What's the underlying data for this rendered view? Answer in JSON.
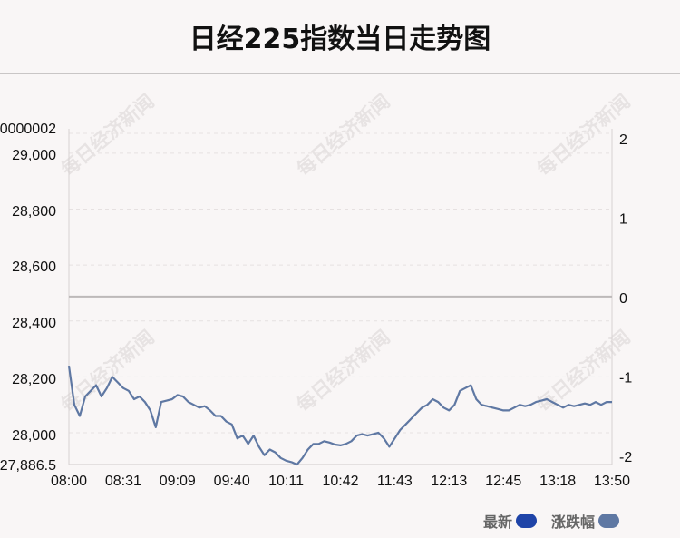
{
  "title": "日经225指数当日走势图",
  "watermark": "每日经济新闻",
  "legend": [
    {
      "label": "最新",
      "color": "#1f44a8"
    },
    {
      "label": "涨跌幅",
      "color": "#5f78a3"
    }
  ],
  "chart_data": {
    "type": "line",
    "title": "日经225指数当日走势图",
    "x_ticks": [
      "08:00",
      "08:31",
      "09:09",
      "09:40",
      "10:11",
      "10:42",
      "11:43",
      "12:13",
      "12:45",
      "13:18",
      "13:50"
    ],
    "y_left_ticks": [
      "27,886.5",
      "28,000",
      "28,200",
      "28,400",
      "28,600",
      "28,800",
      "29,000",
      "0000002"
    ],
    "y_right_ticks": [
      "-2",
      "-1",
      "0",
      "1",
      "2"
    ],
    "ylim_left": [
      27886.5,
      29086.5
    ],
    "ylim_right": [
      -2,
      2.1
    ],
    "reference_line": 28487,
    "line_color": "#5f78a3",
    "grid": "dashed horizontal",
    "series": [
      {
        "name": "涨跌幅",
        "x_index_range": [
          0,
          100
        ],
        "values": [
          28240,
          28100,
          28060,
          28130,
          28150,
          28170,
          28130,
          28160,
          28200,
          28180,
          28160,
          28150,
          28120,
          28130,
          28110,
          28080,
          28020,
          28110,
          28115,
          28120,
          28135,
          28130,
          28110,
          28100,
          28090,
          28095,
          28080,
          28060,
          28060,
          28040,
          28030,
          27980,
          27990,
          27960,
          27990,
          27950,
          27920,
          27940,
          27930,
          27910,
          27900,
          27895,
          27886.5,
          27910,
          27940,
          27960,
          27960,
          27970,
          27965,
          27958,
          27955,
          27960,
          27970,
          27990,
          27995,
          27990,
          27995,
          28000,
          27980,
          27950,
          27980,
          28010,
          28030,
          28050,
          28070,
          28090,
          28100,
          28120,
          28110,
          28090,
          28080,
          28100,
          28150,
          28160,
          28170,
          28120,
          28100,
          28095,
          28090,
          28085,
          28080,
          28080,
          28090,
          28100,
          28095,
          28100,
          28110,
          28115,
          28120,
          28110,
          28100,
          28090,
          28100,
          28095,
          28100,
          28105,
          28100,
          28110,
          28100,
          28110,
          28110
        ]
      }
    ]
  }
}
